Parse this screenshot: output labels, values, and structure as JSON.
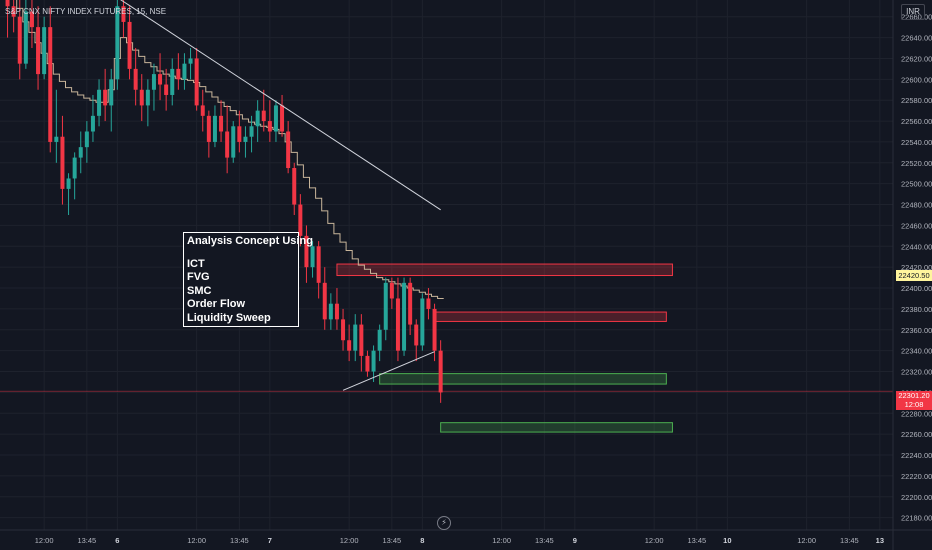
{
  "header": {
    "symbol_title": "S&P CNX NIFTY INDEX FUTURES, 15, NSE",
    "currency": "INR"
  },
  "note": {
    "heading": "Analysis Concept Using",
    "items": [
      "ICT",
      "FVG",
      "SMC",
      "Order Flow",
      "Liquidity Sweep"
    ]
  },
  "price_tags": {
    "current_level": "22420.50",
    "last_price": "22301.20",
    "countdown": "12:08"
  },
  "colors": {
    "up": "#26a69a",
    "down": "#f23645",
    "background": "#131722",
    "grid": "#1e222d",
    "bearish_zone": "#f23645",
    "bullish_zone": "#4caf50"
  },
  "chart_data": {
    "type": "candlestick",
    "title": "S&P CNX NIFTY INDEX FUTURES, 15, NSE",
    "y_axis": {
      "ticks": [
        22660,
        22640,
        22620,
        22600,
        22580,
        22560,
        22540,
        22520,
        22500,
        22480,
        22460,
        22440,
        22420,
        22400,
        22380,
        22360,
        22340,
        22320,
        22300,
        22280,
        22260,
        22240,
        22220,
        22200,
        22180
      ],
      "range": [
        22172,
        22676
      ],
      "position": "right"
    },
    "x_axis": {
      "labels": [
        {
          "text": "12:00",
          "bar": 6,
          "day": false
        },
        {
          "text": "13:45",
          "bar": 13,
          "day": false
        },
        {
          "text": "6",
          "bar": 18,
          "day": true
        },
        {
          "text": "12:00",
          "bar": 31,
          "day": false
        },
        {
          "text": "13:45",
          "bar": 38,
          "day": false
        },
        {
          "text": "7",
          "bar": 43,
          "day": true
        },
        {
          "text": "12:00",
          "bar": 56,
          "day": false
        },
        {
          "text": "13:45",
          "bar": 63,
          "day": false
        },
        {
          "text": "8",
          "bar": 68,
          "day": true
        },
        {
          "text": "12:00",
          "bar": 81,
          "day": false
        },
        {
          "text": "13:45",
          "bar": 88,
          "day": false
        },
        {
          "text": "9",
          "bar": 93,
          "day": true
        },
        {
          "text": "12:00",
          "bar": 106,
          "day": false
        },
        {
          "text": "13:45",
          "bar": 113,
          "day": false
        },
        {
          "text": "10",
          "bar": 118,
          "day": true
        },
        {
          "text": "12:00",
          "bar": 131,
          "day": false
        },
        {
          "text": "13:45",
          "bar": 138,
          "day": false
        },
        {
          "text": "13",
          "bar": 143,
          "day": true
        }
      ]
    },
    "candles": [
      [
        22690,
        22700,
        22640,
        22670
      ],
      [
        22670,
        22690,
        22645,
        22660
      ],
      [
        22660,
        22680,
        22600,
        22615
      ],
      [
        22615,
        22680,
        22610,
        22665
      ],
      [
        22665,
        22690,
        22630,
        22650
      ],
      [
        22650,
        22670,
        22590,
        22605
      ],
      [
        22605,
        22660,
        22600,
        22650
      ],
      [
        22650,
        22670,
        22530,
        22540
      ],
      [
        22540,
        22590,
        22520,
        22545
      ],
      [
        22545,
        22565,
        22480,
        22495
      ],
      [
        22495,
        22510,
        22470,
        22505
      ],
      [
        22505,
        22530,
        22485,
        22525
      ],
      [
        22525,
        22550,
        22510,
        22535
      ],
      [
        22535,
        22560,
        22520,
        22550
      ],
      [
        22550,
        22585,
        22540,
        22565
      ],
      [
        22565,
        22600,
        22555,
        22590
      ],
      [
        22590,
        22610,
        22560,
        22575
      ],
      [
        22575,
        22610,
        22550,
        22600
      ],
      [
        22600,
        22680,
        22590,
        22670
      ],
      [
        22670,
        22690,
        22640,
        22655
      ],
      [
        22655,
        22670,
        22600,
        22610
      ],
      [
        22610,
        22630,
        22575,
        22590
      ],
      [
        22590,
        22605,
        22560,
        22575
      ],
      [
        22575,
        22600,
        22555,
        22590
      ],
      [
        22590,
        22615,
        22570,
        22605
      ],
      [
        22605,
        22625,
        22580,
        22595
      ],
      [
        22595,
        22610,
        22570,
        22585
      ],
      [
        22585,
        22620,
        22575,
        22610
      ],
      [
        22610,
        22625,
        22590,
        22600
      ],
      [
        22600,
        22625,
        22590,
        22615
      ],
      [
        22615,
        22630,
        22600,
        22620
      ],
      [
        22620,
        22630,
        22570,
        22575
      ],
      [
        22575,
        22590,
        22550,
        22565
      ],
      [
        22565,
        22570,
        22525,
        22540
      ],
      [
        22540,
        22575,
        22535,
        22565
      ],
      [
        22565,
        22580,
        22540,
        22550
      ],
      [
        22550,
        22575,
        22510,
        22525
      ],
      [
        22525,
        22560,
        22520,
        22555
      ],
      [
        22555,
        22570,
        22530,
        22540
      ],
      [
        22540,
        22555,
        22525,
        22545
      ],
      [
        22545,
        22565,
        22530,
        22555
      ],
      [
        22555,
        22580,
        22540,
        22570
      ],
      [
        22570,
        22590,
        22550,
        22560
      ],
      [
        22560,
        22580,
        22540,
        22550
      ],
      [
        22550,
        22580,
        22540,
        22575
      ],
      [
        22575,
        22585,
        22545,
        22550
      ],
      [
        22550,
        22560,
        22510,
        22515
      ],
      [
        22515,
        22520,
        22470,
        22480
      ],
      [
        22480,
        22490,
        22440,
        22450
      ],
      [
        22450,
        22460,
        22405,
        22420
      ],
      [
        22420,
        22445,
        22410,
        22440
      ],
      [
        22440,
        22445,
        22390,
        22405
      ],
      [
        22405,
        22420,
        22360,
        22370
      ],
      [
        22370,
        22395,
        22360,
        22385
      ],
      [
        22385,
        22400,
        22360,
        22370
      ],
      [
        22370,
        22380,
        22340,
        22350
      ],
      [
        22350,
        22365,
        22330,
        22340
      ],
      [
        22340,
        22375,
        22330,
        22365
      ],
      [
        22365,
        22375,
        22320,
        22335
      ],
      [
        22335,
        22340,
        22315,
        22320
      ],
      [
        22320,
        22345,
        22310,
        22340
      ],
      [
        22340,
        22365,
        22330,
        22360
      ],
      [
        22360,
        22410,
        22350,
        22405
      ],
      [
        22405,
        22410,
        22380,
        22390
      ],
      [
        22390,
        22410,
        22330,
        22340
      ],
      [
        22340,
        22410,
        22335,
        22405
      ],
      [
        22405,
        22410,
        22355,
        22365
      ],
      [
        22365,
        22370,
        22330,
        22345
      ],
      [
        22345,
        22395,
        22340,
        22390
      ],
      [
        22390,
        22400,
        22370,
        22380
      ],
      [
        22380,
        22385,
        22330,
        22340
      ],
      [
        22340,
        22350,
        22290,
        22300
      ]
    ],
    "overlays": {
      "moving_average": [
        22690,
        22680,
        22668,
        22655,
        22645,
        22635,
        22625,
        22615,
        22605,
        22598,
        22592,
        22588,
        22585,
        22582,
        22580,
        22578,
        22578,
        22590,
        22620,
        22640,
        22635,
        22628,
        22622,
        22616,
        22612,
        22608,
        22605,
        22603,
        22601,
        22600,
        22599,
        22597,
        22593,
        22588,
        22583,
        22578,
        22574,
        22570,
        22566,
        22562,
        22559,
        22557,
        22555,
        22554,
        22552,
        22548,
        22540,
        22530,
        22518,
        22506,
        22496,
        22486,
        22474,
        22462,
        22452,
        22444,
        22436,
        22428,
        22422,
        22418,
        22414,
        22410,
        22408,
        22406,
        22404,
        22402,
        22400,
        22398,
        22396,
        22394,
        22392,
        22390
      ],
      "trend_lines": [
        {
          "from": {
            "bar": 16,
            "price": 22686
          },
          "to": {
            "bar": 71,
            "price": 22475
          }
        },
        {
          "from": {
            "bar": 55,
            "price": 22302
          },
          "to": {
            "bar": 70,
            "price": 22339
          }
        }
      ],
      "zones": [
        {
          "kind": "bearish",
          "bar_start": 54,
          "bar_end": 109,
          "top": 22423,
          "bottom": 22412
        },
        {
          "kind": "bearish",
          "bar_start": 70,
          "bar_end": 108,
          "top": 22377,
          "bottom": 22368
        },
        {
          "kind": "bullish",
          "bar_start": 61,
          "bar_end": 108,
          "top": 22318,
          "bottom": 22308
        },
        {
          "kind": "bullish",
          "bar_start": 71,
          "bar_end": 109,
          "top": 22271,
          "bottom": 22262
        }
      ],
      "price_lines": [
        22301.2
      ]
    },
    "candle_field_order": [
      "open",
      "high",
      "low",
      "close"
    ]
  }
}
